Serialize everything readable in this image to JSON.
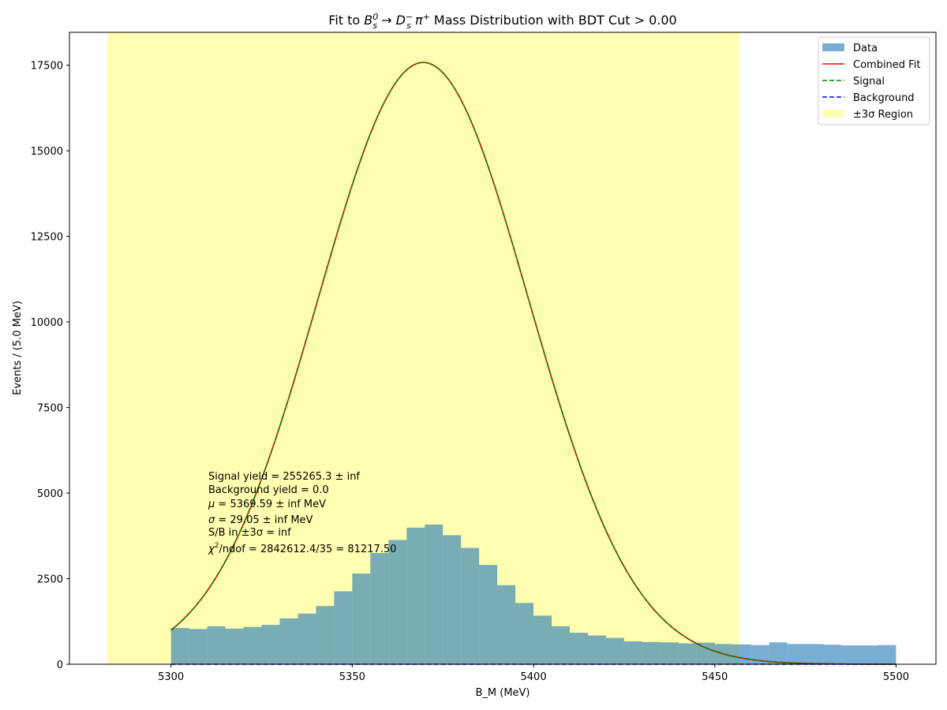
{
  "chart_data": {
    "type": "histogram",
    "title": "Fit to B_s^0 → D_s^− π^+ Mass Distribution with BDT Cut > 0.00",
    "title_parts": {
      "prefix": "Fit to ",
      "particle_b": "B",
      "b_sub": "s",
      "b_sup": "0",
      "arrow": " → ",
      "particle_d": "D",
      "d_sub": "s",
      "d_sup": "−",
      "space": " ",
      "particle_pi": "π",
      "pi_sup": "+",
      "suffix": " Mass Distribution with BDT Cut > 0.00"
    },
    "xlabel": "B_M (MeV)",
    "ylabel": "Events / (5.0 MeV)",
    "xlim": [
      5272,
      5511
    ],
    "ylim": [
      0,
      18460
    ],
    "x_ticks": [
      5300,
      5350,
      5400,
      5450,
      5500
    ],
    "y_ticks": [
      0,
      2500,
      5000,
      7500,
      10000,
      12500,
      15000,
      17500
    ],
    "bin_width": 5,
    "bins": {
      "edges_start": 5300,
      "values": [
        1060,
        1030,
        1110,
        1040,
        1090,
        1150,
        1340,
        1480,
        1700,
        2130,
        2650,
        3250,
        3630,
        3990,
        4080,
        3770,
        3400,
        2900,
        2310,
        1790,
        1420,
        1110,
        920,
        840,
        770,
        670,
        650,
        640,
        610,
        630,
        590,
        580,
        560,
        640,
        590,
        590,
        570,
        550,
        550,
        560
      ]
    },
    "signal_region": {
      "low": 5282.44,
      "high": 5456.74,
      "label": "±3σ Region"
    },
    "fit": {
      "mu": 5369.59,
      "sigma": 29.05,
      "amplitude": 17580,
      "background_level": 0,
      "x_range": [
        5300,
        5500
      ]
    },
    "legend": {
      "position": "top-right",
      "entries": [
        {
          "label": "Data",
          "kind": "patch",
          "color": "#1f77b4"
        },
        {
          "label": "Combined Fit",
          "kind": "line",
          "color": "#ff0000"
        },
        {
          "label": "Signal",
          "kind": "dashed",
          "color": "#008000"
        },
        {
          "label": "Background",
          "kind": "dashed",
          "color": "#0000ff"
        },
        {
          "label": "±3σ Region",
          "kind": "patch",
          "color": "#ffff00"
        }
      ]
    },
    "annotations": {
      "signal_yield": "Signal yield = 255265.3 ± inf",
      "background_yield": "Background yield = 0.0",
      "mu_sym": "μ",
      "mu_text": " = 5369.59 ± inf MeV",
      "sigma_sym": "σ",
      "sigma_text": " = 29.05 ± inf MeV",
      "sb_text": "S/B in ±3σ = inf",
      "chi_sym": "χ",
      "chi_sup": "2",
      "chi_text": "/ndof = 2842612.4/35 = 81217.50"
    },
    "colors": {
      "data": "#1f77b4",
      "combined": "#ff0000",
      "signal": "#008000",
      "background": "#0000ff",
      "region": "#ffff00"
    }
  }
}
